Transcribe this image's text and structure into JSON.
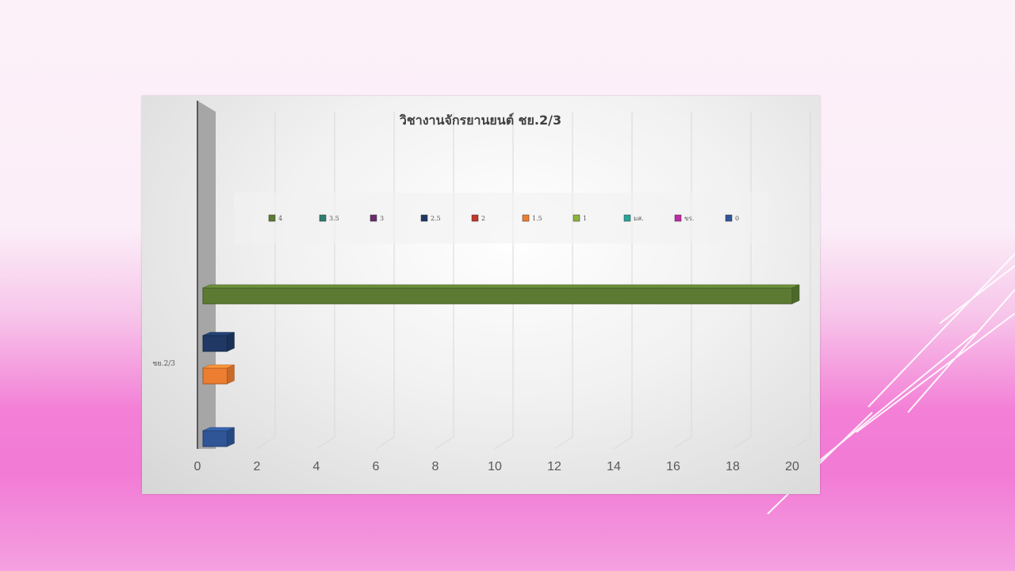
{
  "chart_data": {
    "type": "bar",
    "orientation": "horizontal",
    "style": "3d-clustered",
    "title": "วิชางานจักรยานยนต์ ชย.2/3",
    "categories": [
      "ชย.2/3"
    ],
    "xlim": [
      0,
      20
    ],
    "x_ticks": [
      "0",
      "2",
      "4",
      "6",
      "8",
      "10",
      "12",
      "14",
      "16",
      "18",
      "20"
    ],
    "grid": true,
    "legend_position": "top",
    "series": [
      {
        "name": "4",
        "values": [
          20
        ],
        "color": "#5c7a32"
      },
      {
        "name": "3.5",
        "values": [
          0
        ],
        "color": "#2e7d6e"
      },
      {
        "name": "3",
        "values": [
          0
        ],
        "color": "#6b2c6b"
      },
      {
        "name": "2.5",
        "values": [
          1
        ],
        "color": "#1f3864"
      },
      {
        "name": "2",
        "values": [
          0
        ],
        "color": "#c0392b"
      },
      {
        "name": "1.5",
        "values": [
          1
        ],
        "color": "#ed7d31"
      },
      {
        "name": "1",
        "values": [
          0
        ],
        "color": "#8ab53e"
      },
      {
        "name": "มส.",
        "values": [
          0
        ],
        "color": "#26a69a"
      },
      {
        "name": "ขร.",
        "values": [
          0
        ],
        "color": "#c02aa8"
      },
      {
        "name": "0",
        "values": [
          1
        ],
        "color": "#2f5597"
      }
    ]
  }
}
